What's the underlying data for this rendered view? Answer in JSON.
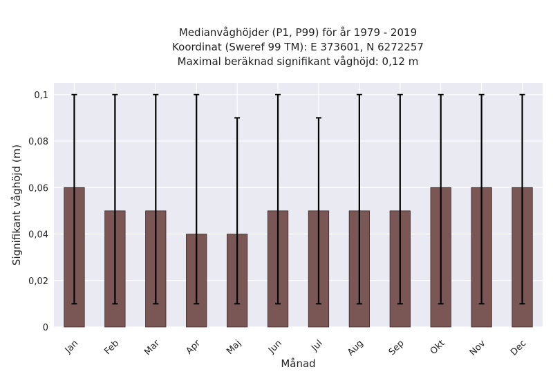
{
  "chart_data": {
    "type": "bar",
    "title_lines": [
      "Medianvåghöjder (P1, P99) för år 1979 - 2019",
      "Koordinat (Sweref 99 TM): E 373601, N 6272257",
      "Maximal beräknad signifikant våghöjd: 0,12 m"
    ],
    "xlabel": "Månad",
    "ylabel": "Signifikant våghöjd (m)",
    "categories": [
      "Jan",
      "Feb",
      "Mar",
      "Apr",
      "Maj",
      "Jun",
      "Jul",
      "Aug",
      "Sep",
      "Okt",
      "Nov",
      "Dec"
    ],
    "values": [
      0.06,
      0.05,
      0.05,
      0.04,
      0.04,
      0.05,
      0.05,
      0.05,
      0.05,
      0.06,
      0.06,
      0.06
    ],
    "error_low": [
      0.01,
      0.01,
      0.01,
      0.01,
      0.01,
      0.01,
      0.01,
      0.01,
      0.01,
      0.01,
      0.01,
      0.01
    ],
    "error_high": [
      0.1,
      0.1,
      0.1,
      0.1,
      0.09,
      0.1,
      0.09,
      0.1,
      0.1,
      0.1,
      0.1,
      0.1
    ],
    "ylim": [
      0,
      0.105
    ],
    "yticks": [
      0,
      0.02,
      0.04,
      0.06,
      0.08,
      0.1
    ],
    "ytick_labels": [
      "0",
      "0,02",
      "0,04",
      "0,06",
      "0,08",
      "0,1"
    ],
    "grid": true,
    "colors": {
      "bar": "#7a5655",
      "bar_edge": "#3a2a2a",
      "error": "#000000",
      "plot_bg": "#eaeaf2",
      "grid": "#ffffff"
    }
  }
}
